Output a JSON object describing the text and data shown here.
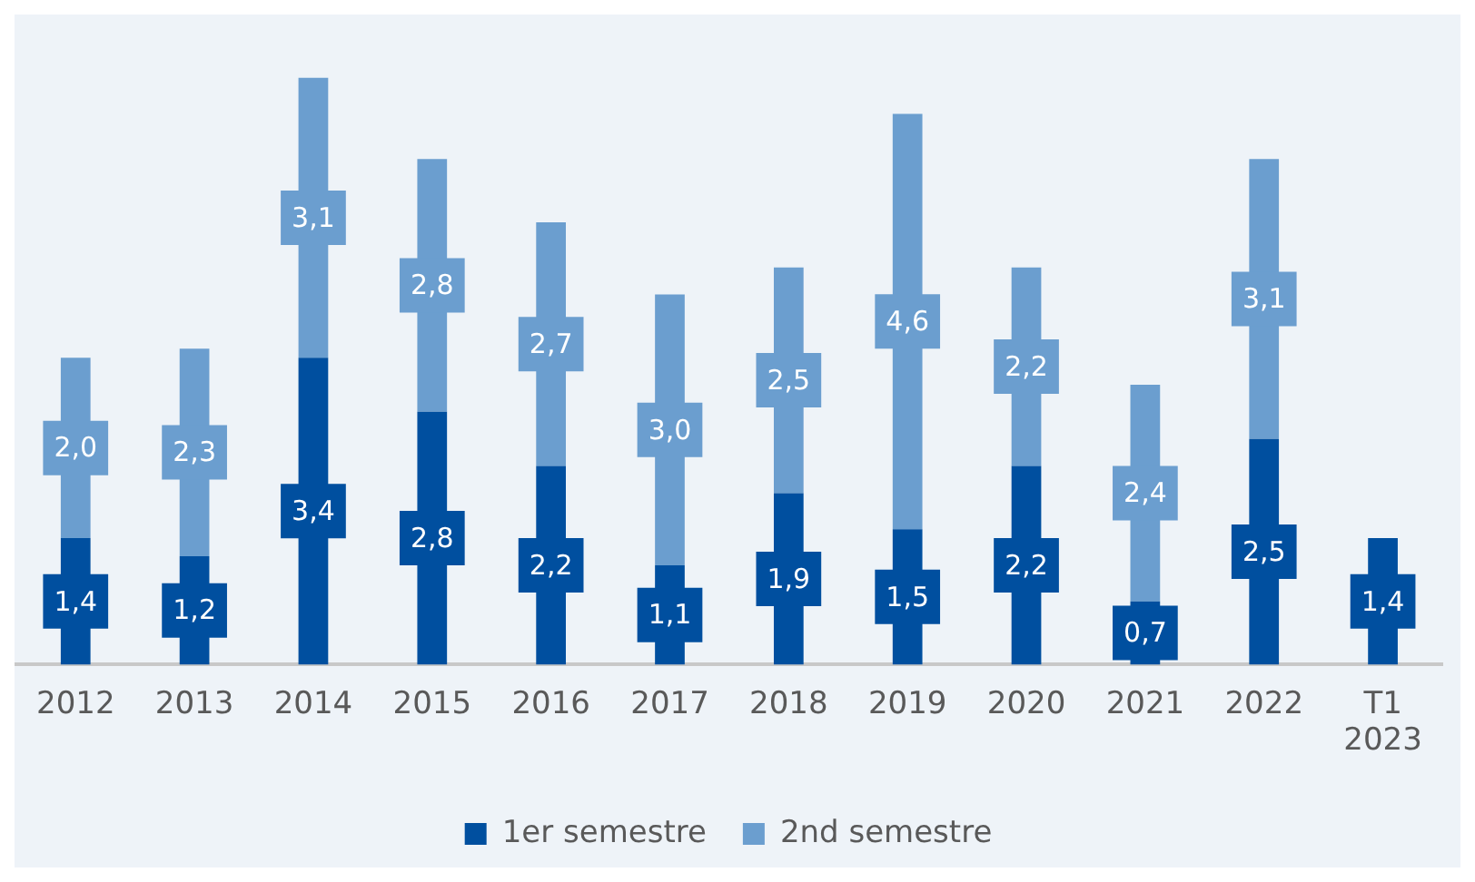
{
  "chart_data": {
    "type": "bar",
    "stacked": true,
    "categories": [
      "2012",
      "2013",
      "2014",
      "2015",
      "2016",
      "2017",
      "2018",
      "2019",
      "2020",
      "2021",
      "2022",
      "T1 2023"
    ],
    "series": [
      {
        "name": "1er semestre",
        "color": "#004f9f",
        "values": [
          1.4,
          1.2,
          3.4,
          2.8,
          2.2,
          1.1,
          1.9,
          1.5,
          2.2,
          0.7,
          2.5,
          1.4
        ],
        "value_labels": [
          "1,4",
          "1,2",
          "3,4",
          "2,8",
          "2,2",
          "1,1",
          "1,9",
          "1,5",
          "2,2",
          "0,7",
          "2,5",
          "1,4"
        ]
      },
      {
        "name": "2nd semestre",
        "color": "#6b9ecf",
        "values": [
          2.0,
          2.3,
          3.1,
          2.8,
          2.7,
          3.0,
          2.5,
          4.6,
          2.2,
          2.4,
          3.1,
          null
        ],
        "value_labels": [
          "2,0",
          "2,3",
          "3,1",
          "2,8",
          "2,7",
          "3,0",
          "2,5",
          "4,6",
          "2,2",
          "2,4",
          "3,1",
          null
        ]
      }
    ],
    "legend": "bottom",
    "grid": false
  }
}
